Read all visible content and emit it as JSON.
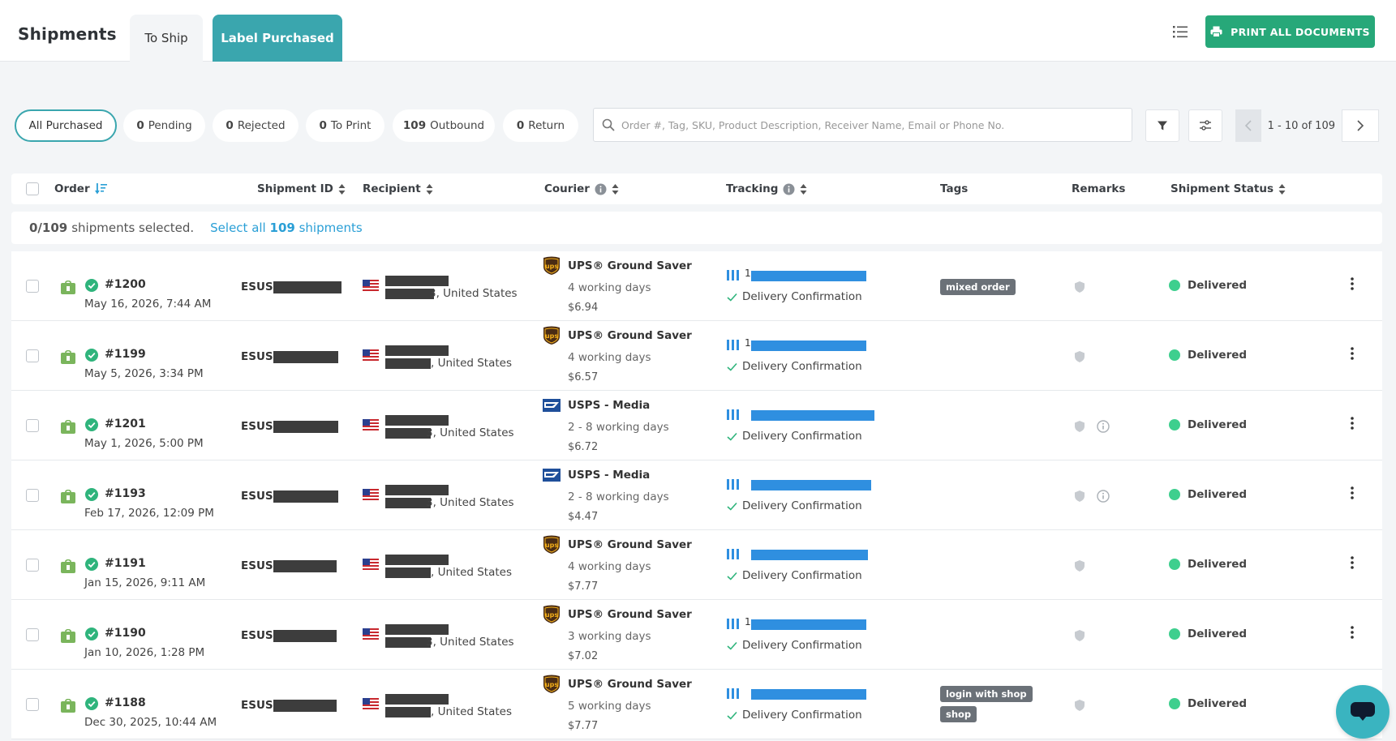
{
  "header": {
    "title": "Shipments",
    "tabs": [
      {
        "label": "To Ship",
        "active": false
      },
      {
        "label": "Label Purchased",
        "active": true
      }
    ],
    "print_all_label": "PRINT ALL DOCUMENTS",
    "accent_color": "#3aa6ae",
    "print_color": "#27a879"
  },
  "filters": {
    "pills": [
      {
        "count": "",
        "label": "All Purchased",
        "active": true
      },
      {
        "count": "0",
        "label": "Pending"
      },
      {
        "count": "0",
        "label": "Rejected"
      },
      {
        "count": "0",
        "label": "To Print"
      },
      {
        "count": "109",
        "label": "Outbound"
      },
      {
        "count": "0",
        "label": "Return"
      }
    ],
    "search_placeholder": "Order #, Tag, SKU, Product Description, Receiver Name, Email or Phone No.",
    "pagination": "1 - 10 of 109"
  },
  "table": {
    "columns": {
      "order": "Order",
      "shipment_id": "Shipment ID",
      "recipient": "Recipient",
      "courier": "Courier",
      "tracking": "Tracking",
      "tags": "Tags",
      "remarks": "Remarks",
      "status": "Shipment Status"
    },
    "selection": {
      "count": "0/109",
      "text": "shipments selected.",
      "select_all_prefix": "Select all",
      "select_all_count": "109",
      "select_all_suffix": "shipments"
    },
    "rows": [
      {
        "order": "#1200",
        "date": "May 16, 2026, 7:44 AM",
        "shipment_prefix": "ESUS",
        "country": ", United States",
        "country_prefix": "3",
        "courier": "UPS® Ground Saver",
        "courier_logo": "ups-logo",
        "days": "4 working days",
        "price": "$6.94",
        "tracking_prefix": "1",
        "confirmation": "Delivery Confirmation",
        "tags": [
          "mixed order"
        ],
        "has_info": false,
        "status": "Delivered",
        "status_color": "#3ecf8e"
      },
      {
        "order": "#1199",
        "date": "May 5, 2026, 3:34 PM",
        "shipment_prefix": "ESUS",
        "country": ", United States",
        "country_prefix": "",
        "courier": "UPS® Ground Saver",
        "courier_logo": "ups-logo",
        "days": "4 working days",
        "price": "$6.57",
        "tracking_prefix": "1",
        "confirmation": "Delivery Confirmation",
        "tags": [],
        "has_info": false,
        "status": "Delivered",
        "status_color": "#3ecf8e"
      },
      {
        "order": "#1201",
        "date": "May 1, 2026, 5:00 PM",
        "shipment_prefix": "ESUS",
        "country": ", United States",
        "country_prefix": "3",
        "courier": "USPS - Media",
        "courier_logo": "usps-logo",
        "days": "2 - 8 working days",
        "price": "$6.72",
        "tracking_prefix": "",
        "confirmation": "Delivery Confirmation",
        "tags": [],
        "has_info": true,
        "status": "Delivered",
        "status_color": "#3ecf8e"
      },
      {
        "order": "#1193",
        "date": "Feb 17, 2026, 12:09 PM",
        "shipment_prefix": "ESUS",
        "country": ", United States",
        "country_prefix": "3",
        "courier": "USPS - Media",
        "courier_logo": "usps-logo",
        "days": "2 - 8 working days",
        "price": "$4.47",
        "tracking_prefix": "",
        "confirmation": "Delivery Confirmation",
        "tags": [],
        "has_info": true,
        "status": "Delivered",
        "status_color": "#3ecf8e"
      },
      {
        "order": "#1191",
        "date": "Jan 15, 2026, 9:11 AM",
        "shipment_prefix": "ESUS",
        "country": ", United States",
        "country_prefix": "",
        "courier": "UPS® Ground Saver",
        "courier_logo": "ups-logo",
        "days": "4 working days",
        "price": "$7.77",
        "tracking_prefix": "",
        "confirmation": "Delivery Confirmation",
        "tags": [],
        "has_info": false,
        "status": "Delivered",
        "status_color": "#3ecf8e"
      },
      {
        "order": "#1190",
        "date": "Jan 10, 2026, 1:28 PM",
        "shipment_prefix": "ESUS",
        "country": ", United States",
        "country_prefix": "3",
        "courier": "UPS® Ground Saver",
        "courier_logo": "ups-logo",
        "days": "3 working days",
        "price": "$7.02",
        "tracking_prefix": "1",
        "confirmation": "Delivery Confirmation",
        "tags": [],
        "has_info": false,
        "status": "Delivered",
        "status_color": "#3ecf8e"
      },
      {
        "order": "#1188",
        "date": "Dec 30, 2025, 10:44 AM",
        "shipment_prefix": "ESUS",
        "country": ", United States",
        "country_prefix": "",
        "courier": "UPS® Ground Saver",
        "courier_logo": "ups-logo",
        "days": "5 working days",
        "price": "$7.77",
        "tracking_prefix": "",
        "confirmation": "Delivery Confirmation",
        "tags": [
          "login with shop",
          "shop"
        ],
        "has_info": false,
        "status": "Delivered",
        "status_color": "#3ecf8e"
      }
    ]
  }
}
